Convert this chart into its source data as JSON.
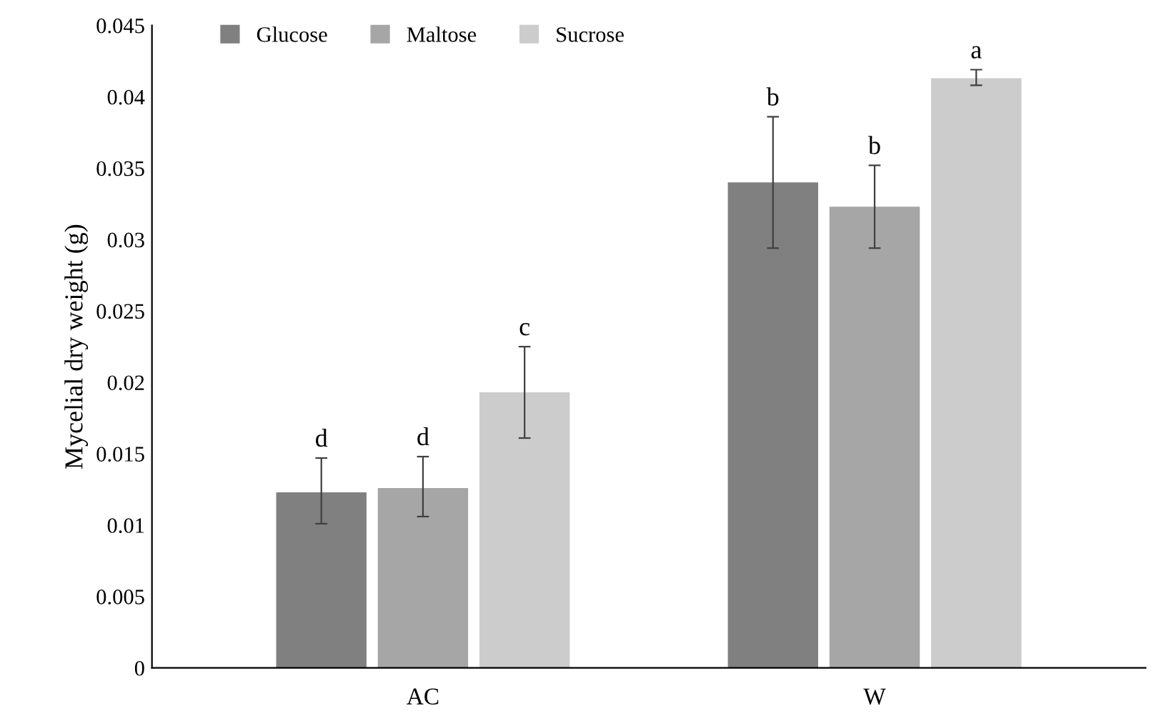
{
  "chart_data": {
    "type": "bar",
    "ylabel": "Mycelial dry weight (g)",
    "categories": [
      "AC",
      "W"
    ],
    "series": [
      {
        "name": "Glucose",
        "color": "#808080",
        "values": [
          0.0123,
          0.034
        ],
        "errors": [
          [
            0.0101,
            0.0147
          ],
          [
            0.0294,
            0.0386
          ]
        ]
      },
      {
        "name": "Maltose",
        "color": "#a6a6a6",
        "values": [
          0.0126,
          0.0323
        ],
        "errors": [
          [
            0.0106,
            0.0148
          ],
          [
            0.0294,
            0.0352
          ]
        ]
      },
      {
        "name": "Sucrose",
        "color": "#cccccc",
        "values": [
          0.0193,
          0.0413
        ],
        "errors": [
          [
            0.0161,
            0.0225
          ],
          [
            0.0408,
            0.0419
          ]
        ]
      }
    ],
    "ylim": [
      0,
      0.045
    ],
    "yticks": [
      0,
      0.005,
      0.01,
      0.015,
      0.02,
      0.025,
      0.03,
      0.035,
      0.04,
      0.045
    ],
    "grid": false,
    "legend": "top left",
    "annotations": [
      "d",
      "d",
      "c",
      "b",
      "b",
      "a"
    ]
  }
}
